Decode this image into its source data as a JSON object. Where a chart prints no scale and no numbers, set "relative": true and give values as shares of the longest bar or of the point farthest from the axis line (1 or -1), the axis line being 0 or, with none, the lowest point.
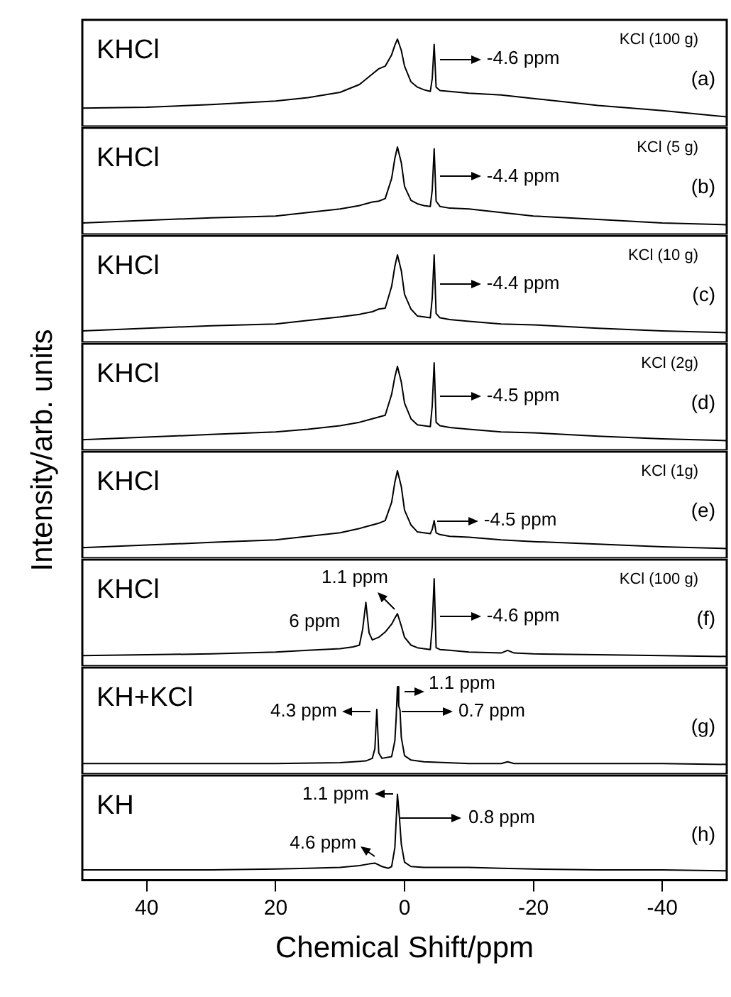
{
  "chart_data": [
    {
      "type": "line",
      "relative": true,
      "xlim": [
        50,
        -50
      ],
      "xticks": [
        40,
        20,
        0,
        -20,
        -40
      ],
      "tick_labels": false,
      "color": "#000000",
      "x": [
        50,
        40,
        30,
        20,
        15,
        10,
        7,
        5,
        4,
        3,
        2,
        1.5,
        1.1,
        0.5,
        0,
        -1,
        -2,
        -3,
        -4,
        -4.3,
        -4.6,
        -4.9,
        -5.5,
        -7,
        -10,
        -15,
        -20,
        -30,
        -40,
        -50
      ],
      "values": [
        0.21,
        0.22,
        0.25,
        0.29,
        0.33,
        0.39,
        0.48,
        0.6,
        0.66,
        0.69,
        0.82,
        0.93,
        1,
        0.87,
        0.69,
        0.51,
        0.45,
        0.42,
        0.4,
        0.55,
        0.94,
        0.45,
        0.41,
        0.4,
        0.38,
        0.36,
        0.32,
        0.24,
        0.18,
        0.11
      ],
      "annotations": [
        "KHCl",
        "KCl (100 g)",
        "(a)",
        {
          "text": "-4.6 ppm",
          "x": -4.6,
          "y": 0.77
        }
      ]
    },
    {
      "type": "line",
      "relative": true,
      "xlim": [
        50,
        -50
      ],
      "xticks": [
        40,
        20,
        0,
        -20,
        -40
      ],
      "tick_labels": false,
      "color": "#000000",
      "x": [
        50,
        40,
        30,
        20,
        15,
        10,
        7,
        5,
        4,
        3,
        2,
        1.5,
        1.1,
        0.5,
        0,
        -1,
        -2,
        -3,
        -4,
        -4.3,
        -4.6,
        -4.9,
        -5.5,
        -7,
        -10,
        -15,
        -20,
        -30,
        -40,
        -50
      ],
      "values": [
        0.13,
        0.16,
        0.19,
        0.21,
        0.25,
        0.29,
        0.33,
        0.37,
        0.38,
        0.41,
        0.64,
        0.87,
        1,
        0.82,
        0.55,
        0.39,
        0.35,
        0.33,
        0.32,
        0.51,
        0.98,
        0.38,
        0.32,
        0.3,
        0.29,
        0.25,
        0.21,
        0.17,
        0.13,
        0.11
      ],
      "annotations": [
        "KHCl",
        "KCl (5 g)",
        "(b)",
        {
          "text": "-4.4 ppm",
          "x": -4.6,
          "y": 0.66
        }
      ]
    },
    {
      "type": "line",
      "relative": true,
      "xlim": [
        50,
        -50
      ],
      "xticks": [
        40,
        20,
        0,
        -20,
        -40
      ],
      "tick_labels": false,
      "color": "#000000",
      "x": [
        50,
        40,
        30,
        20,
        15,
        10,
        7,
        5,
        4,
        3,
        2,
        1.5,
        1.1,
        0.5,
        0,
        -1,
        -2,
        -3,
        -4,
        -4.3,
        -4.6,
        -4.9,
        -5.5,
        -7,
        -10,
        -15,
        -20,
        -30,
        -40,
        -50
      ],
      "values": [
        0.13,
        0.16,
        0.19,
        0.21,
        0.25,
        0.29,
        0.32,
        0.35,
        0.38,
        0.39,
        0.64,
        0.87,
        1,
        0.82,
        0.55,
        0.38,
        0.3,
        0.29,
        0.28,
        0.51,
        1,
        0.33,
        0.28,
        0.26,
        0.24,
        0.21,
        0.2,
        0.16,
        0.13,
        0.11
      ],
      "annotations": [
        "KHCl",
        "KCl (10 g)",
        "(c)",
        {
          "text": "-4.4 ppm",
          "x": -4.6,
          "y": 0.67
        }
      ]
    },
    {
      "type": "line",
      "ylabel": "Intensity/arb. units",
      "relative": true,
      "xlim": [
        50,
        -50
      ],
      "xticks": [
        40,
        20,
        0,
        -20,
        -40
      ],
      "tick_labels": false,
      "color": "#000000",
      "x": [
        50,
        40,
        30,
        20,
        15,
        10,
        7,
        5,
        4,
        3,
        2,
        1.5,
        1.1,
        0.5,
        0,
        -1,
        -2,
        -3,
        -4,
        -4.3,
        -4.6,
        -4.9,
        -5.5,
        -7,
        -10,
        -15,
        -20,
        -30,
        -40,
        -50
      ],
      "values": [
        0.12,
        0.15,
        0.18,
        0.21,
        0.24,
        0.28,
        0.32,
        0.36,
        0.38,
        0.4,
        0.64,
        0.84,
        0.96,
        0.78,
        0.54,
        0.36,
        0.29,
        0.28,
        0.27,
        0.51,
        1,
        0.32,
        0.28,
        0.26,
        0.24,
        0.21,
        0.2,
        0.16,
        0.13,
        0.11
      ],
      "annotations": [
        "KHCl",
        "KCl (2g)",
        "(d)",
        {
          "text": "-4.5 ppm",
          "x": -4.6,
          "y": 0.62
        }
      ]
    },
    {
      "type": "line",
      "relative": true,
      "xlim": [
        50,
        -50
      ],
      "xticks": [
        40,
        20,
        0,
        -20,
        -40
      ],
      "tick_labels": false,
      "color": "#000000",
      "x": [
        50,
        40,
        30,
        20,
        15,
        10,
        7,
        5,
        4,
        3,
        2,
        1.5,
        1.1,
        0.5,
        0,
        -1,
        -2,
        -3,
        -4,
        -4.3,
        -4.6,
        -4.9,
        -5.5,
        -7,
        -10,
        -15,
        -20,
        -30,
        -40,
        -50
      ],
      "values": [
        0.12,
        0.15,
        0.18,
        0.21,
        0.25,
        0.29,
        0.34,
        0.38,
        0.4,
        0.43,
        0.64,
        0.87,
        1,
        0.82,
        0.55,
        0.38,
        0.3,
        0.29,
        0.28,
        0.33,
        0.43,
        0.29,
        0.27,
        0.25,
        0.24,
        0.21,
        0.19,
        0.16,
        0.13,
        0.11
      ],
      "annotations": [
        "KHCl",
        "KCl (1g)",
        "(e)",
        {
          "text": "-4.5 ppm",
          "x": -4.6,
          "y": 0.43
        }
      ]
    },
    {
      "type": "line",
      "relative": true,
      "xlim": [
        50,
        -50
      ],
      "xticks": [
        40,
        20,
        0,
        -20,
        -40
      ],
      "tick_labels": false,
      "color": "#000000",
      "x": [
        50,
        40,
        30,
        20,
        15,
        10,
        8,
        7,
        6.5,
        6,
        5.5,
        5,
        4,
        3,
        2,
        1.5,
        1.1,
        0.5,
        0,
        -1,
        -2,
        -3,
        -4,
        -4.3,
        -4.6,
        -4.9,
        -5.5,
        -7,
        -10,
        -15,
        -16,
        -17,
        -20,
        -30,
        -40,
        -50
      ],
      "values": [
        0.12,
        0.13,
        0.14,
        0.16,
        0.18,
        0.2,
        0.22,
        0.24,
        0.42,
        0.73,
        0.38,
        0.3,
        0.33,
        0.39,
        0.48,
        0.55,
        0.6,
        0.46,
        0.33,
        0.24,
        0.21,
        0.2,
        0.19,
        0.46,
        1,
        0.21,
        0.19,
        0.18,
        0.16,
        0.15,
        0.18,
        0.15,
        0.14,
        0.13,
        0.12,
        0.11
      ],
      "annotations": [
        "KHCl",
        "KCl (100 g)",
        "(f)",
        {
          "text": "-4.6 ppm",
          "x": -4.6,
          "y": 0.57
        },
        {
          "text": "1.1 ppm",
          "x": 1.1,
          "y": 0.6
        },
        {
          "text": "6 ppm",
          "x": 6,
          "y": 0.73
        }
      ]
    },
    {
      "type": "line",
      "relative": true,
      "xlim": [
        50,
        -50
      ],
      "xticks": [
        40,
        20,
        0,
        -20,
        -40
      ],
      "tick_labels": false,
      "color": "#000000",
      "x": [
        50,
        40,
        30,
        20,
        10,
        6,
        5,
        4.6,
        4.3,
        4,
        3.5,
        2,
        1.5,
        1.3,
        1.1,
        0.9,
        0.7,
        0.5,
        0,
        -1,
        -3,
        -10,
        -15,
        -16,
        -17,
        -30,
        -40,
        -50
      ],
      "values": [
        0.12,
        0.12,
        0.12,
        0.12,
        0.13,
        0.15,
        0.18,
        0.29,
        0.74,
        0.24,
        0.18,
        0.2,
        0.38,
        0.64,
        1,
        0.78,
        0.73,
        0.42,
        0.21,
        0.16,
        0.14,
        0.12,
        0.12,
        0.14,
        0.12,
        0.12,
        0.12,
        0.11
      ],
      "annotations": [
        "KH+KCl",
        "(g)",
        "0.7 ppm",
        {
          "text": "4.3 ppm",
          "x": 4.3,
          "y": 0.72
        },
        {
          "text": "1.1 ppm",
          "x": 1.1,
          "y": 0.95
        }
      ]
    },
    {
      "type": "line",
      "relative": true,
      "xlim": [
        50,
        -50
      ],
      "xticks": [
        40,
        20,
        0,
        -20,
        -40
      ],
      "xlabel": "Chemical Shift/ppm",
      "color": "#000000",
      "x": [
        50,
        40,
        30,
        20,
        15,
        10,
        7,
        5.5,
        4.6,
        3.5,
        2.5,
        2,
        1.5,
        1.1,
        0.8,
        0.5,
        0,
        -1,
        -3,
        -5,
        -10,
        -15,
        -20,
        -30,
        -40,
        -50
      ],
      "values": [
        0.12,
        0.12,
        0.12,
        0.13,
        0.14,
        0.15,
        0.17,
        0.19,
        0.2,
        0.16,
        0.14,
        0.16,
        0.38,
        1,
        0.74,
        0.42,
        0.21,
        0.16,
        0.15,
        0.15,
        0.15,
        0.14,
        0.13,
        0.12,
        0.12,
        0.11
      ],
      "annotations": [
        "KH",
        "(h)",
        "0.8 ppm",
        {
          "text": "1.1 ppm",
          "x": 1.1,
          "y": 1
        },
        {
          "text": "4.6 ppm",
          "x": 4.6,
          "y": 0.28
        }
      ]
    }
  ]
}
